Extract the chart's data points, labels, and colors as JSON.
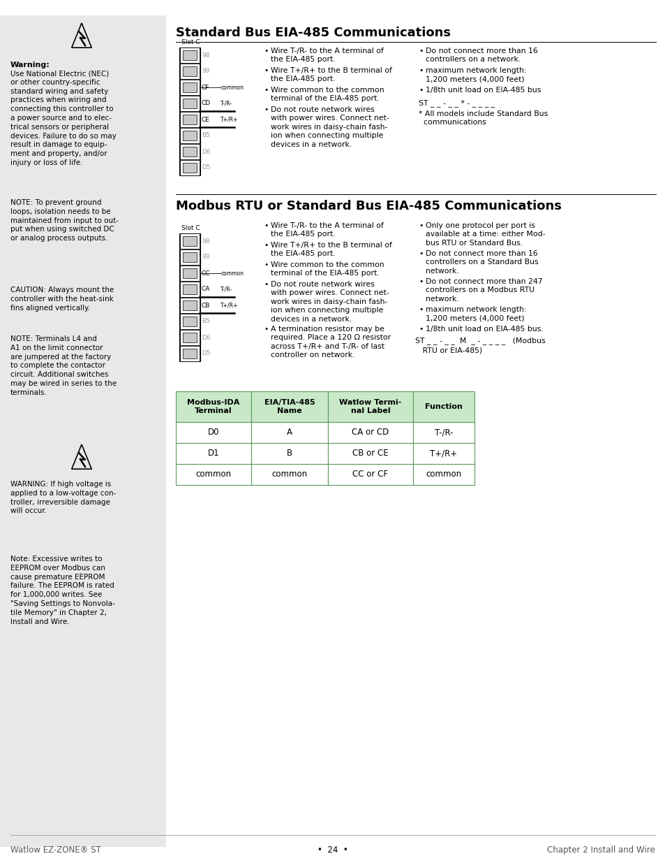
{
  "page_bg": "#ffffff",
  "sidebar_bg": "#e8e8e8",
  "header1": "Standard Bus EIA-485 Communications",
  "header2": "Modbus RTU or Standard Bus EIA-485 Communications",
  "footer_left": "Watlow EZ-ZONE® ST",
  "footer_center": "•  24  •",
  "footer_right": "Chapter 2 Install and Wire",
  "warning_title": "Warning:",
  "warning_text": "Use National Electric (NEC)\nor other country-specific\nstandard wiring and safety\npractices when wiring and\nconnecting this controller to\na power source and to elec-\ntrical sensors or peripheral\ndevices. Failure to do so may\nresult in damage to equip-\nment and property, and/or\ninjury or loss of life.",
  "note1_text": "NOTE: To prevent ground\nloops, isolation needs to be\nmaintained from input to out-\nput when using switched DC\nor analog process outputs.",
  "caution_text": "CAUTION: Always mount the\ncontroller with the heat-sink\nfins aligned vertically.",
  "note2_text": "NOTE: Terminals L4 and\nA1 on the limit connector\nare jumpered at the factory\nto complete the contactor\ncircuit. Additional switches\nmay be wired in series to the\nterminals.",
  "warning2_text": "WARNING: If high voltage is\napplied to a low-voltage con-\ntroller, irreversible damage\nwill occur.",
  "note3_text": "Note: Excessive writes to\nEEPROM over Modbus can\ncause premature EEPROM\nfailure. The EEPROM is rated\nfor 1,000,000 writes. See\n\"Saving Settings to Nonvola-\ntile Memory\" in Chapter 2,\nInstall and Wire.",
  "sec1_bullet1": "Wire T-/R- to the A terminal of\nthe EIA-485 port.",
  "sec1_bullet2": "Wire T+/R+ to the B terminal of\nthe EIA-485 port.",
  "sec1_bullet3": "Wire common to the common\nterminal of the EIA-485 port.",
  "sec1_bullet4": "Do not route network wires\nwith power wires. Connect net-\nwork wires in daisy-chain fash-\nion when connecting multiple\ndevices in a network.",
  "sec1_rbullet1": "Do not connect more than 16\ncontrollers on a network.",
  "sec1_rbullet2": "maximum network length:\n1,200 meters (4,000 feet)",
  "sec1_rbullet3": "1/8th unit load on EIA-485 bus",
  "sec1_model": "ST _ _ - _ _ * - _ _ _ _",
  "sec1_note": "* All models include Standard Bus\n  communications",
  "sec2_bullet1": "Wire T-/R- to the A terminal of\nthe EIA-485 port.",
  "sec2_bullet2": "Wire T+/R+ to the B terminal of\nthe EIA-485 port.",
  "sec2_bullet3": "Wire common to the common\nterminal of the EIA-485 port.",
  "sec2_bullet4": "Do not route network wires\nwith power wires. Connect net-\nwork wires in daisy-chain fash-\nion when connecting multiple\ndevices in a network.",
  "sec2_bullet5": "A termination resistor may be\nrequired. Place a 120 Ω resistor\nacross T+/R+ and T-/R- of last\ncontroller on network.",
  "sec2_rbullet1": "Only one protocol per port is\navailable at a time: either Mod-\nbus RTU or Standard Bus.",
  "sec2_rbullet2": "Do not connect more than 16\ncontrollers on a Standard Bus\nnetwork.",
  "sec2_rbullet3": "Do not connect more than 247\ncontrollers on a Modbus RTU\nnetwork.",
  "sec2_rbullet4": "maximum network length:\n1,200 meters (4,000 feet)",
  "sec2_rbullet5": "1/8th unit load on EIA-485 bus.",
  "sec2_model_line1": "ST _ _ - _ _  M  _ - _ _ _ _   (Modbus",
  "sec2_model_line2": "   RTU or EIA-485)",
  "table_headers": [
    "Modbus-IDA\nTerminal",
    "EIA/TIA-485\nName",
    "Watlow Termi-\nnal Label",
    "Function"
  ],
  "table_rows": [
    [
      "D0",
      "A",
      "CA or CD",
      "T-/R-"
    ],
    [
      "D1",
      "B",
      "CB or CE",
      "T+/R+"
    ],
    [
      "common",
      "common",
      "CC or CF",
      "common"
    ]
  ],
  "table_header_bg": "#c8e8c8",
  "table_border": "#5a9a5a",
  "slot1_rows": [
    "98",
    "99",
    "CF",
    "CD",
    "CE",
    "B5",
    "D6",
    "D5"
  ],
  "slot1_common_row": 2,
  "slot1_tr_row": 3,
  "slot1_tpr_row": 4,
  "slot2_rows": [
    "98",
    "99",
    "CC",
    "CA",
    "CB",
    "B5",
    "D6",
    "D5"
  ],
  "slot2_common_row": 2,
  "slot2_tr_row": 3,
  "slot2_tpr_row": 4
}
